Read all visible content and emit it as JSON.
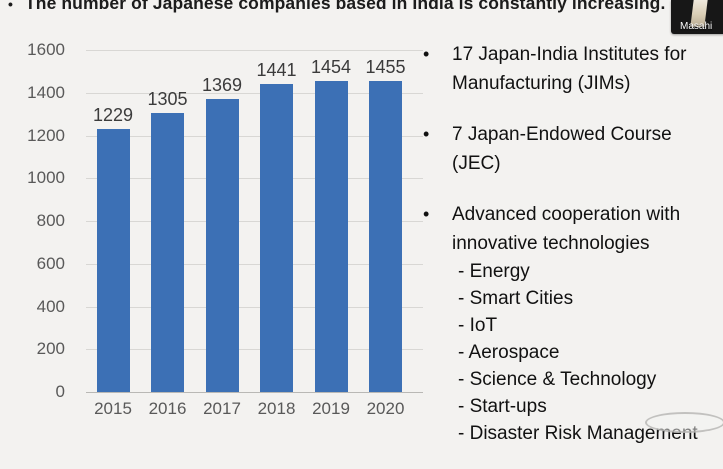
{
  "slide": {
    "bullet_char": "•",
    "dash_prefix": "-",
    "title": "The number of Japanese companies based in India is constantly increasing.",
    "bullets": [
      {
        "lines": [
          "17 Japan-India Institutes for",
          "Manufacturing (JIMs)"
        ]
      },
      {
        "lines": [
          "7 Japan-Endowed Course",
          "(JEC)"
        ]
      },
      {
        "lines": [
          "Advanced cooperation with",
          "innovative technologies"
        ],
        "sub_items": [
          "Energy",
          "Smart Cities",
          "IoT",
          "Aerospace",
          "Science & Technology",
          "Start-ups",
          "Disaster Risk Management"
        ]
      }
    ]
  },
  "chart_data": {
    "type": "bar",
    "categories": [
      "2015",
      "2016",
      "2017",
      "2018",
      "2019",
      "2020"
    ],
    "values": [
      1229,
      1305,
      1369,
      1441,
      1454,
      1455
    ],
    "title": "",
    "xlabel": "",
    "ylabel": "",
    "ylim": [
      0,
      1600
    ],
    "ytick_step": 200,
    "grid": true,
    "legend": "none",
    "bar_color": "#3c70b5",
    "axis_label_color": "#595959",
    "value_label_color": "#3b3b3b"
  },
  "video_overlay": {
    "participant_name": "Masahi"
  },
  "colors": {
    "background": "#f3f2f0",
    "text": "#141414",
    "gridline": "#d8d7d4",
    "axis_line": "#b9b8b5"
  }
}
